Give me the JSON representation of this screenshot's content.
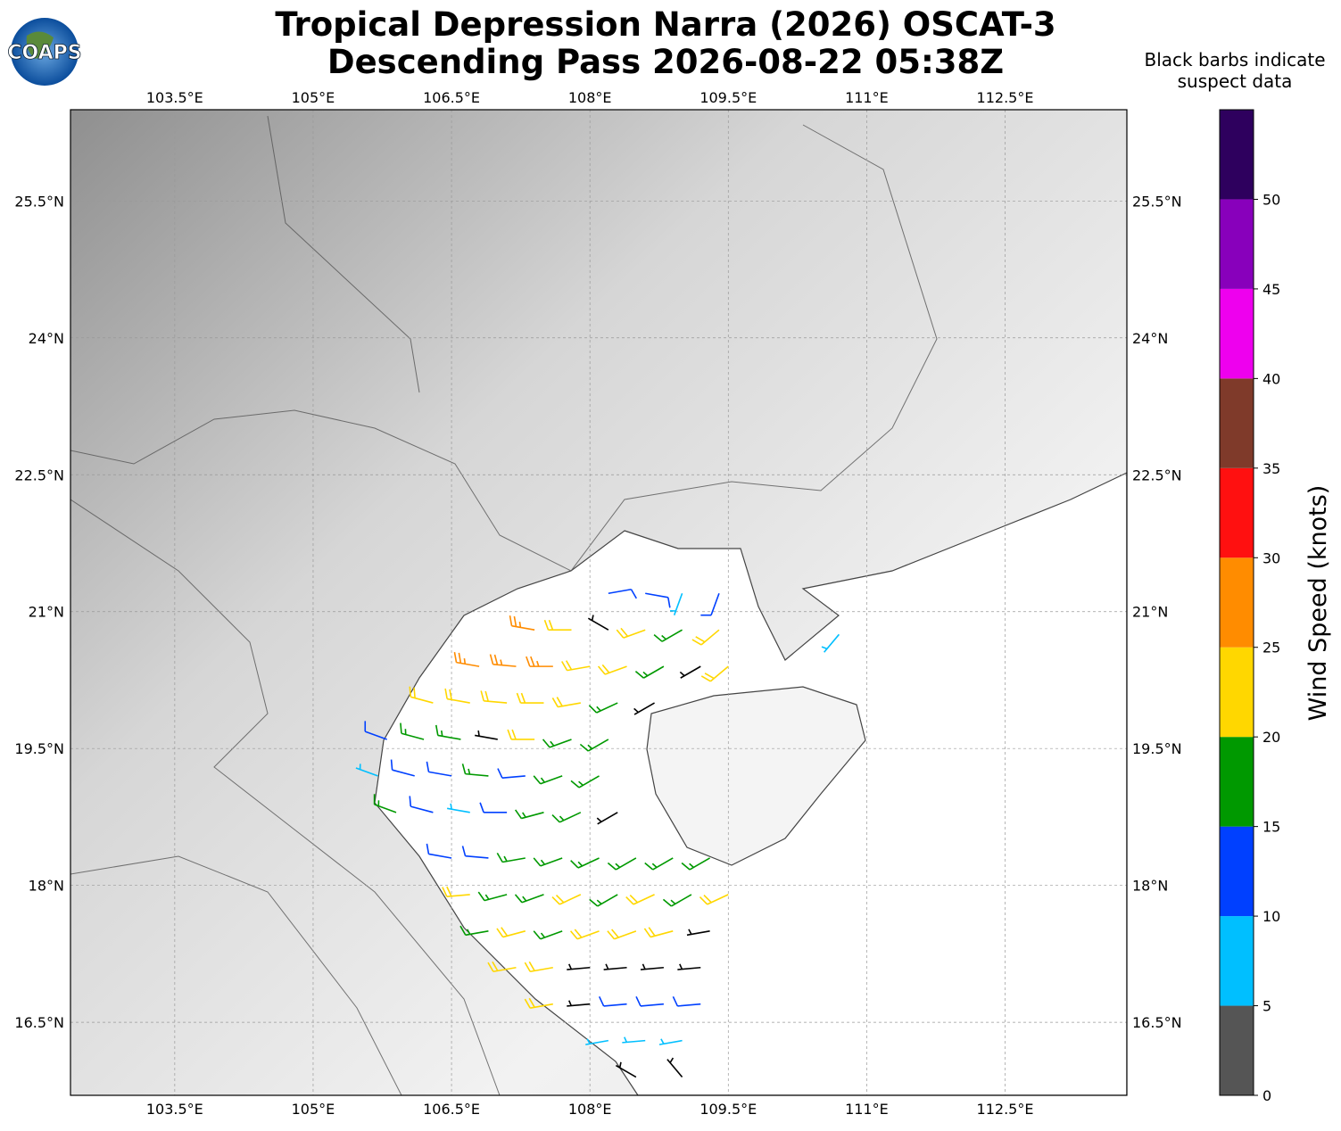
{
  "header": {
    "logo": "COAPS",
    "title": [
      "Tropical Depression Narra (2026) OSCAT-3",
      "Descending Pass 2026-08-22 05:38Z"
    ],
    "note": [
      "Black barbs indicate",
      "suspect data"
    ]
  },
  "map": {
    "lonlim": [
      102.37,
      113.82
    ],
    "latlim": [
      15.7,
      26.5
    ],
    "lonticks": [
      {
        "value": 103.5,
        "label": "103.5°E"
      },
      {
        "value": 105,
        "label": "105°E"
      },
      {
        "value": 106.5,
        "label": "106.5°E"
      },
      {
        "value": 108,
        "label": "108°E"
      },
      {
        "value": 109.5,
        "label": "109.5°E"
      },
      {
        "value": 111,
        "label": "111°E"
      },
      {
        "value": 112.5,
        "label": "112.5°E"
      }
    ],
    "latticks": [
      {
        "value": 16.5,
        "label": "16.5°N"
      },
      {
        "value": 18,
        "label": "18°N"
      },
      {
        "value": 19.5,
        "label": "19.5°N"
      },
      {
        "value": 21,
        "label": "21°N"
      },
      {
        "value": 22.5,
        "label": "22.5°N"
      },
      {
        "value": 24,
        "label": "24°N"
      },
      {
        "value": 25.5,
        "label": "25.5°N"
      }
    ],
    "suspect_color": "#000000",
    "barbs": [
      {
        "lon": 108.2,
        "lat": 21.2,
        "kt": 12,
        "dir": 80
      },
      {
        "lon": 108.6,
        "lat": 21.2,
        "kt": 12,
        "dir": 100
      },
      {
        "lon": 109.0,
        "lat": 21.2,
        "kt": 7,
        "dir": 200
      },
      {
        "lon": 109.4,
        "lat": 21.2,
        "kt": 12,
        "dir": 200
      },
      {
        "lon": 107.4,
        "lat": 20.8,
        "kt": 27,
        "dir": 280
      },
      {
        "lon": 107.8,
        "lat": 20.8,
        "kt": 22,
        "dir": 270
      },
      {
        "lon": 108.2,
        "lat": 20.8,
        "kt": 5,
        "dir": 300,
        "suspect": true
      },
      {
        "lon": 108.6,
        "lat": 20.8,
        "kt": 22,
        "dir": 250
      },
      {
        "lon": 109.0,
        "lat": 20.8,
        "kt": 17,
        "dir": 240
      },
      {
        "lon": 109.4,
        "lat": 20.8,
        "kt": 22,
        "dir": 230
      },
      {
        "lon": 106.8,
        "lat": 20.4,
        "kt": 27,
        "dir": 280
      },
      {
        "lon": 107.2,
        "lat": 20.4,
        "kt": 27,
        "dir": 275
      },
      {
        "lon": 107.6,
        "lat": 20.4,
        "kt": 27,
        "dir": 270
      },
      {
        "lon": 108.0,
        "lat": 20.4,
        "kt": 22,
        "dir": 260
      },
      {
        "lon": 108.4,
        "lat": 20.4,
        "kt": 22,
        "dir": 250
      },
      {
        "lon": 108.8,
        "lat": 20.4,
        "kt": 17,
        "dir": 240
      },
      {
        "lon": 109.2,
        "lat": 20.4,
        "kt": 5,
        "dir": 240,
        "suspect": true
      },
      {
        "lon": 109.5,
        "lat": 20.4,
        "kt": 22,
        "dir": 230
      },
      {
        "lon": 106.3,
        "lat": 20.0,
        "kt": 22,
        "dir": 285
      },
      {
        "lon": 106.7,
        "lat": 20.0,
        "kt": 22,
        "dir": 280
      },
      {
        "lon": 107.1,
        "lat": 20.0,
        "kt": 22,
        "dir": 275
      },
      {
        "lon": 107.5,
        "lat": 20.0,
        "kt": 22,
        "dir": 270
      },
      {
        "lon": 107.9,
        "lat": 20.0,
        "kt": 22,
        "dir": 260
      },
      {
        "lon": 108.3,
        "lat": 20.0,
        "kt": 17,
        "dir": 245
      },
      {
        "lon": 108.7,
        "lat": 20.0,
        "kt": 5,
        "dir": 240,
        "suspect": true
      },
      {
        "lon": 105.8,
        "lat": 19.6,
        "kt": 12,
        "dir": 290
      },
      {
        "lon": 106.2,
        "lat": 19.6,
        "kt": 17,
        "dir": 285
      },
      {
        "lon": 106.6,
        "lat": 19.6,
        "kt": 17,
        "dir": 280
      },
      {
        "lon": 107.0,
        "lat": 19.6,
        "kt": 5,
        "dir": 280,
        "suspect": true
      },
      {
        "lon": 107.4,
        "lat": 19.6,
        "kt": 22,
        "dir": 270
      },
      {
        "lon": 107.8,
        "lat": 19.6,
        "kt": 17,
        "dir": 250
      },
      {
        "lon": 108.2,
        "lat": 19.6,
        "kt": 17,
        "dir": 240
      },
      {
        "lon": 105.7,
        "lat": 19.2,
        "kt": 8,
        "dir": 290
      },
      {
        "lon": 106.1,
        "lat": 19.2,
        "kt": 12,
        "dir": 285
      },
      {
        "lon": 106.5,
        "lat": 19.2,
        "kt": 12,
        "dir": 280
      },
      {
        "lon": 106.9,
        "lat": 19.2,
        "kt": 17,
        "dir": 275
      },
      {
        "lon": 107.3,
        "lat": 19.2,
        "kt": 12,
        "dir": 265
      },
      {
        "lon": 107.7,
        "lat": 19.2,
        "kt": 17,
        "dir": 250
      },
      {
        "lon": 108.1,
        "lat": 19.2,
        "kt": 17,
        "dir": 240
      },
      {
        "lon": 105.9,
        "lat": 18.8,
        "kt": 17,
        "dir": 290
      },
      {
        "lon": 106.3,
        "lat": 18.8,
        "kt": 12,
        "dir": 285
      },
      {
        "lon": 106.7,
        "lat": 18.8,
        "kt": 8,
        "dir": 280
      },
      {
        "lon": 107.1,
        "lat": 18.8,
        "kt": 12,
        "dir": 270
      },
      {
        "lon": 107.5,
        "lat": 18.8,
        "kt": 17,
        "dir": 255
      },
      {
        "lon": 107.9,
        "lat": 18.8,
        "kt": 17,
        "dir": 245
      },
      {
        "lon": 108.3,
        "lat": 18.8,
        "kt": 5,
        "dir": 240,
        "suspect": true
      },
      {
        "lon": 106.5,
        "lat": 18.3,
        "kt": 12,
        "dir": 280
      },
      {
        "lon": 106.9,
        "lat": 18.3,
        "kt": 12,
        "dir": 275
      },
      {
        "lon": 107.3,
        "lat": 18.3,
        "kt": 17,
        "dir": 260
      },
      {
        "lon": 107.7,
        "lat": 18.3,
        "kt": 17,
        "dir": 250
      },
      {
        "lon": 108.1,
        "lat": 18.3,
        "kt": 17,
        "dir": 245
      },
      {
        "lon": 108.5,
        "lat": 18.3,
        "kt": 17,
        "dir": 240
      },
      {
        "lon": 108.9,
        "lat": 18.3,
        "kt": 17,
        "dir": 240
      },
      {
        "lon": 109.3,
        "lat": 18.3,
        "kt": 17,
        "dir": 240
      },
      {
        "lon": 106.7,
        "lat": 17.9,
        "kt": 22,
        "dir": 265
      },
      {
        "lon": 107.1,
        "lat": 17.9,
        "kt": 17,
        "dir": 255
      },
      {
        "lon": 107.5,
        "lat": 17.9,
        "kt": 17,
        "dir": 250
      },
      {
        "lon": 107.9,
        "lat": 17.9,
        "kt": 22,
        "dir": 245
      },
      {
        "lon": 108.3,
        "lat": 17.9,
        "kt": 17,
        "dir": 240
      },
      {
        "lon": 108.7,
        "lat": 17.9,
        "kt": 22,
        "dir": 245
      },
      {
        "lon": 109.1,
        "lat": 17.9,
        "kt": 17,
        "dir": 240
      },
      {
        "lon": 109.5,
        "lat": 17.9,
        "kt": 22,
        "dir": 245
      },
      {
        "lon": 106.9,
        "lat": 17.5,
        "kt": 17,
        "dir": 260
      },
      {
        "lon": 107.3,
        "lat": 17.5,
        "kt": 22,
        "dir": 255
      },
      {
        "lon": 107.7,
        "lat": 17.5,
        "kt": 17,
        "dir": 250
      },
      {
        "lon": 108.1,
        "lat": 17.5,
        "kt": 22,
        "dir": 250
      },
      {
        "lon": 108.5,
        "lat": 17.5,
        "kt": 22,
        "dir": 250
      },
      {
        "lon": 108.9,
        "lat": 17.5,
        "kt": 22,
        "dir": 255
      },
      {
        "lon": 109.3,
        "lat": 17.5,
        "kt": 5,
        "dir": 260,
        "suspect": true
      },
      {
        "lon": 107.2,
        "lat": 17.1,
        "kt": 22,
        "dir": 260
      },
      {
        "lon": 107.6,
        "lat": 17.1,
        "kt": 22,
        "dir": 260
      },
      {
        "lon": 108.0,
        "lat": 17.1,
        "kt": 5,
        "dir": 265,
        "suspect": true
      },
      {
        "lon": 108.4,
        "lat": 17.1,
        "kt": 5,
        "dir": 265,
        "suspect": true
      },
      {
        "lon": 108.8,
        "lat": 17.1,
        "kt": 5,
        "dir": 265,
        "suspect": true
      },
      {
        "lon": 109.2,
        "lat": 17.1,
        "kt": 5,
        "dir": 265,
        "suspect": true
      },
      {
        "lon": 107.6,
        "lat": 16.7,
        "kt": 22,
        "dir": 260
      },
      {
        "lon": 108.0,
        "lat": 16.7,
        "kt": 5,
        "dir": 265,
        "suspect": true
      },
      {
        "lon": 108.4,
        "lat": 16.7,
        "kt": 12,
        "dir": 265
      },
      {
        "lon": 108.8,
        "lat": 16.7,
        "kt": 12,
        "dir": 265
      },
      {
        "lon": 109.2,
        "lat": 16.7,
        "kt": 12,
        "dir": 265
      },
      {
        "lon": 108.2,
        "lat": 16.3,
        "kt": 8,
        "dir": 260
      },
      {
        "lon": 108.6,
        "lat": 16.3,
        "kt": 8,
        "dir": 265
      },
      {
        "lon": 109.0,
        "lat": 16.3,
        "kt": 8,
        "dir": 260
      },
      {
        "lon": 108.5,
        "lat": 15.9,
        "kt": 5,
        "dir": 300,
        "suspect": true
      },
      {
        "lon": 109.0,
        "lat": 15.9,
        "kt": 5,
        "dir": 320,
        "suspect": true
      },
      {
        "lon": 110.7,
        "lat": 20.75,
        "kt": 8,
        "dir": 220
      }
    ]
  },
  "colorbar": {
    "label": "Wind Speed (knots)",
    "lim": [
      0,
      55
    ],
    "ticks": [
      0,
      5,
      10,
      15,
      20,
      25,
      30,
      35,
      40,
      45,
      50
    ],
    "colors": [
      "#555555",
      "#00bfff",
      "#0040ff",
      "#009900",
      "#ffd700",
      "#ff8c00",
      "#ff1010",
      "#7f3a2a",
      "#ee00ee",
      "#8800bb",
      "#2e005e"
    ]
  }
}
